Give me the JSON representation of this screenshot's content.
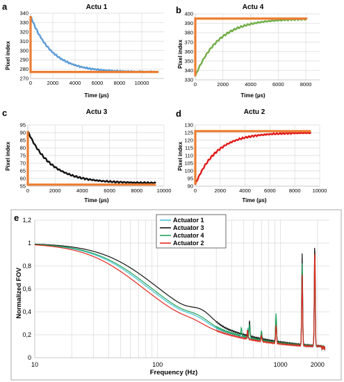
{
  "colors": {
    "actu1": "#5b9bd5",
    "actu4": "#70ad47",
    "actu3": "#111111",
    "actu2": "#e11b1b",
    "target": "#ed7d31",
    "e_actuator1": "#45c2d6",
    "e_actuator3": "#111111",
    "e_actuator4": "#1fa35a",
    "e_actuator2": "#e1261c"
  },
  "chart_data": [
    {
      "panel": "a",
      "type": "line",
      "title": "Actu 1",
      "xlabel": "Time (µs)",
      "ylabel": "Pixel index",
      "xlim": [
        0,
        12000
      ],
      "xticks": [
        0,
        2000,
        4000,
        6000,
        8000,
        10000
      ],
      "ylim": [
        270,
        340
      ],
      "yticks": [
        270,
        280,
        290,
        300,
        310,
        320,
        330,
        340
      ],
      "grid": true,
      "series": [
        {
          "key": "response",
          "color_key": "actu1",
          "kind": "exp",
          "start": 337,
          "end": 277,
          "tau": 1900,
          "tmax": 11500,
          "ripple": 1.2
        },
        {
          "key": "target",
          "color_key": "target",
          "kind": "step",
          "from": 337,
          "level": 277,
          "tmax": 11500
        }
      ]
    },
    {
      "panel": "b",
      "type": "line",
      "title": "Actu 4",
      "xlabel": "Time (µs)",
      "ylabel": "Pixel index",
      "xlim": [
        0,
        9000
      ],
      "xticks": [
        0,
        2000,
        4000,
        6000,
        8000
      ],
      "ylim": [
        330,
        400
      ],
      "yticks": [
        330,
        340,
        350,
        360,
        370,
        380,
        390,
        400
      ],
      "grid": true,
      "series": [
        {
          "key": "response",
          "color_key": "actu4",
          "kind": "exp",
          "start": 334,
          "end": 395,
          "tau": 1700,
          "tmax": 8100,
          "ripple": 1.3
        },
        {
          "key": "target",
          "color_key": "target",
          "kind": "step",
          "from": 334,
          "level": 395,
          "tmax": 8100
        }
      ]
    },
    {
      "panel": "c",
      "type": "line",
      "title": "Actu 3",
      "xlabel": "Time (µs)",
      "ylabel": "Pixel index",
      "xlim": [
        0,
        10000
      ],
      "xticks": [
        0,
        2000,
        4000,
        6000,
        8000,
        10000
      ],
      "ylim": [
        55,
        95
      ],
      "yticks": [
        55,
        60,
        65,
        70,
        75,
        80,
        85,
        90,
        95
      ],
      "grid": true,
      "series": [
        {
          "key": "response",
          "color_key": "actu3",
          "kind": "exp",
          "start": 91,
          "end": 57,
          "tau": 1700,
          "tmax": 9400,
          "ripple": 0.8
        },
        {
          "key": "target",
          "color_key": "target",
          "kind": "step",
          "from": 91,
          "level": 56,
          "tmax": 9400
        }
      ]
    },
    {
      "panel": "d",
      "type": "line",
      "title": "Actu 2",
      "xlabel": "Time (µs)",
      "ylabel": "Pixel index",
      "xlim": [
        0,
        10000
      ],
      "xticks": [
        0,
        2000,
        4000,
        6000,
        8000,
        10000
      ],
      "ylim": [
        90,
        130
      ],
      "yticks": [
        90,
        95,
        100,
        105,
        110,
        115,
        120,
        125,
        130
      ],
      "grid": true,
      "series": [
        {
          "key": "response",
          "color_key": "actu2",
          "kind": "exp",
          "start": 91,
          "end": 125,
          "tau": 1700,
          "tmax": 9300,
          "ripple": 0.8
        },
        {
          "key": "target",
          "color_key": "target",
          "kind": "step",
          "from": 91,
          "level": 126,
          "tmax": 9300
        }
      ]
    },
    {
      "panel": "e",
      "type": "line",
      "xscale": "log",
      "title": "",
      "xlabel": "Frequency (Hz)",
      "ylabel": "Normalized FOV",
      "xlim": [
        10,
        2500
      ],
      "xticks": [
        10,
        100,
        1000,
        2000
      ],
      "xtick_labels": [
        "10",
        "100",
        "1000",
        "2000"
      ],
      "ylim": [
        0,
        1.2
      ],
      "yticks": [
        0,
        0.2,
        0.4,
        0.6,
        0.8,
        1.0,
        1.2
      ],
      "ytick_labels": [
        "0",
        "0,2",
        "0,4",
        "0,6",
        "0,8",
        "1",
        "1,2"
      ],
      "grid": true,
      "legend_position": "top-center",
      "series": [
        {
          "name": "Actuator 1",
          "color_key": "e_actuator1",
          "fc": 60,
          "fc2": 210,
          "shoulder": 0.035,
          "peaks": [
            [
              540,
              0.09
            ],
            [
              700,
              0.06
            ],
            [
              920,
              0.18
            ],
            [
              1500,
              0.66
            ],
            [
              1900,
              0.76
            ]
          ]
        },
        {
          "name": "Actuator 3",
          "color_key": "e_actuator3",
          "fc": 72,
          "fc2": 230,
          "shoulder": 0.07,
          "peaks": [
            [
              560,
              0.13
            ],
            [
              700,
              0.06
            ],
            [
              920,
              0.22
            ],
            [
              1500,
              0.8
            ],
            [
              1900,
              0.92
            ]
          ]
        },
        {
          "name": "Actuator 4",
          "color_key": "e_actuator4",
          "fc": 63,
          "fc2": 215,
          "shoulder": 0.04,
          "peaks": [
            [
              480,
              0.07
            ],
            [
              560,
              0.12
            ],
            [
              700,
              0.08
            ],
            [
              920,
              0.26
            ],
            [
              1500,
              0.72
            ],
            [
              1900,
              0.82
            ]
          ]
        },
        {
          "name": "Actuator 2",
          "color_key": "e_actuator2",
          "fc": 54,
          "fc2": 200,
          "shoulder": 0.02,
          "peaks": [
            [
              540,
              0.08
            ],
            [
              700,
              0.05
            ],
            [
              920,
              0.16
            ],
            [
              1500,
              0.62
            ],
            [
              1900,
              0.86
            ]
          ]
        }
      ]
    }
  ]
}
